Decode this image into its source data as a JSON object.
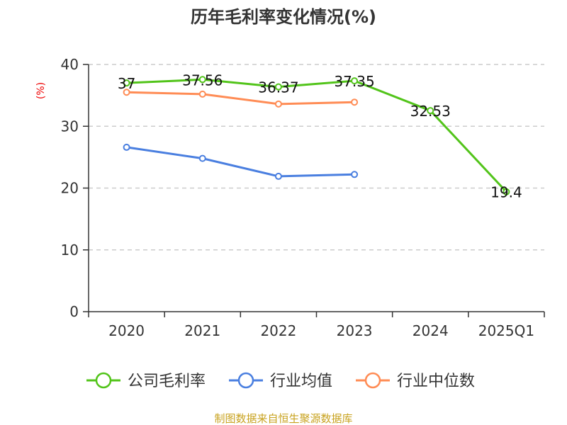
{
  "chart_data": {
    "type": "line",
    "title": "历年毛利率变化情况(%)",
    "ylabel": "(%)",
    "xlabel": "",
    "categories": [
      "2020",
      "2021",
      "2022",
      "2023",
      "2024",
      "2025Q1"
    ],
    "ylim": [
      0,
      40
    ],
    "yticks": [
      0,
      10,
      20,
      30,
      40
    ],
    "grid": true,
    "legend_position": "bottom",
    "series": [
      {
        "name": "公司毛利率",
        "color": "#52c41a",
        "values": [
          37,
          37.56,
          36.37,
          37.35,
          32.53,
          19.4
        ],
        "labels": [
          "37",
          "37.56",
          "36.37",
          "37.35",
          "32.53",
          "19.4"
        ]
      },
      {
        "name": "行业均值",
        "color": "#4a7fe0",
        "values": [
          26.6,
          24.8,
          21.9,
          22.2,
          null,
          null
        ]
      },
      {
        "name": "行业中位数",
        "color": "#ff8c55",
        "values": [
          35.5,
          35.2,
          33.6,
          33.9,
          null,
          null
        ]
      }
    ]
  },
  "footer": {
    "source": "制图数据来自恒生聚源数据库"
  }
}
